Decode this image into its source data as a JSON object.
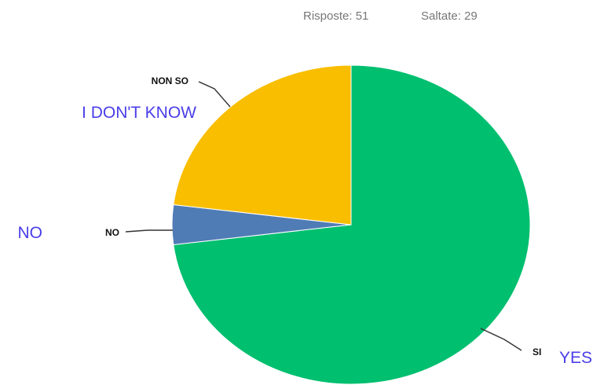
{
  "summary": {
    "answered_text": "Risposte: 51",
    "skipped_text": "Saltate: 29"
  },
  "chart_data": {
    "type": "pie",
    "categories": [
      "SI",
      "NO",
      "NON SO"
    ],
    "values": [
      73,
      4,
      23
    ],
    "unit": "%",
    "start_angle_deg": 0,
    "direction": "clockwise",
    "colors": {
      "SI": "#00bf6f",
      "NO": "#507cb6",
      "NON SO": "#f9be00"
    },
    "annotations": [
      "YES",
      "NO",
      "I DON'T KNOW"
    ],
    "annotation_color": "#4a3ee8"
  }
}
